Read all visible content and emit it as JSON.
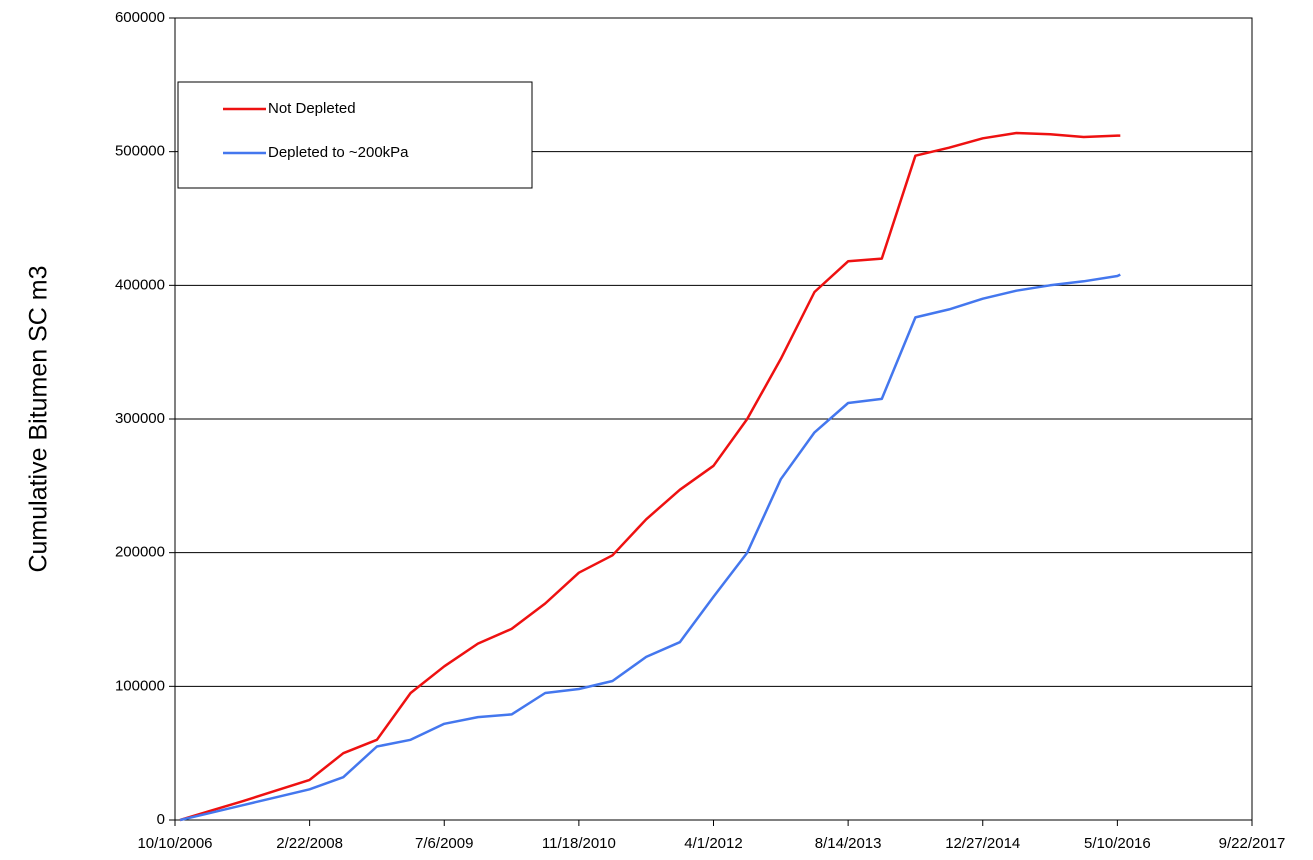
{
  "chart_data": {
    "type": "line",
    "y_label": "Cumulative Bitumen SC m3",
    "x": [
      "2006-10-29",
      "2007-02-12",
      "2007-06-17",
      "2007-10-20",
      "2008-02-22",
      "2008-06-26",
      "2008-10-29",
      "2009-03-03",
      "2009-07-06",
      "2009-11-08",
      "2010-03-13",
      "2010-07-16",
      "2010-11-18",
      "2011-03-23",
      "2011-07-26",
      "2011-11-28",
      "2012-04-01",
      "2012-08-04",
      "2012-12-07",
      "2013-04-11",
      "2013-08-14",
      "2013-12-17",
      "2014-04-21",
      "2014-08-24",
      "2014-12-27",
      "2015-05-01",
      "2015-09-03",
      "2016-01-06",
      "2016-05-10",
      "2016-05-21"
    ],
    "series": [
      {
        "name": "Not Depleted",
        "color": "#ee1111",
        "values": [
          0,
          6500,
          14000,
          22000,
          30000,
          50000,
          60000,
          95000,
          115000,
          132000,
          143000,
          162000,
          185000,
          198000,
          225000,
          247000,
          265000,
          300000,
          345000,
          395000,
          418000,
          420000,
          497000,
          503000,
          510000,
          514000,
          513000,
          511000,
          512000,
          512000
        ]
      },
      {
        "name": "Depleted to ~200kPa",
        "color": "#4477ee",
        "values": [
          0,
          5000,
          11000,
          17000,
          23000,
          32000,
          55000,
          60000,
          72000,
          77000,
          79000,
          95000,
          98000,
          104000,
          122000,
          133000,
          167000,
          200000,
          255000,
          290000,
          312000,
          315000,
          376000,
          382000,
          390000,
          396000,
          400000,
          403000,
          407000,
          408000
        ]
      }
    ],
    "xlim": [
      "2006-10-10",
      "2017-09-22"
    ],
    "xticks": [
      {
        "value": "2006-10-10",
        "label": "10/10/2006"
      },
      {
        "value": "2008-02-22",
        "label": "2/22/2008"
      },
      {
        "value": "2009-07-06",
        "label": "7/6/2009"
      },
      {
        "value": "2010-11-18",
        "label": "11/18/2010"
      },
      {
        "value": "2012-04-01",
        "label": "4/1/2012"
      },
      {
        "value": "2013-08-14",
        "label": "8/14/2013"
      },
      {
        "value": "2014-12-27",
        "label": "12/27/2014"
      },
      {
        "value": "2016-05-10",
        "label": "5/10/2016"
      },
      {
        "value": "2017-09-22",
        "label": "9/22/2017"
      }
    ],
    "ylim": [
      0,
      600000
    ],
    "yticks": [
      0,
      100000,
      200000,
      300000,
      400000,
      500000,
      600000
    ],
    "grid": true,
    "legend": "upper left"
  }
}
